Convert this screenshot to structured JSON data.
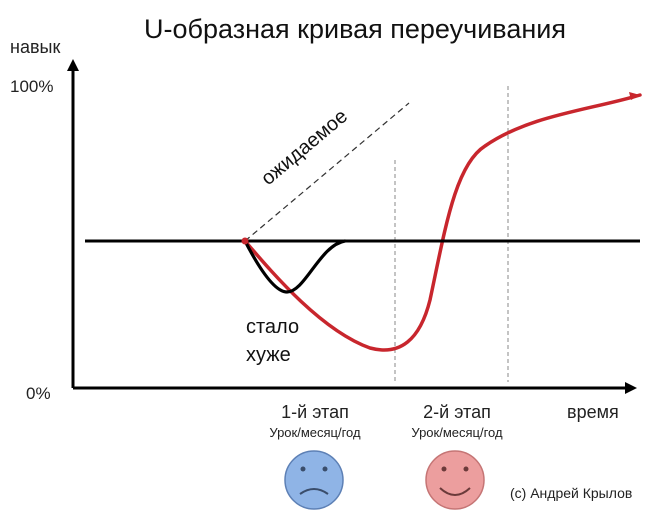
{
  "title": "U-образная кривая переучивания",
  "axes": {
    "y_label": "навык",
    "x_label": "время",
    "y_top": "100%",
    "y_bottom": "0%"
  },
  "annotations": {
    "expected": "ожидаемое",
    "worse_line1": "стало",
    "worse_line2": "хуже"
  },
  "stages": [
    {
      "label": "1-й этап",
      "sub": "Урок/месяц/год",
      "face": "sad",
      "face_color": "#8fb4e6"
    },
    {
      "label": "2-й этап",
      "sub": "Урок/месяц/год",
      "face": "happy",
      "face_color": "#ec9e9e"
    }
  ],
  "credit": "(c) Андрей Крылов",
  "colors": {
    "baseline": "#000000",
    "learning_curve": "#c8262d",
    "expected_line": "#333333",
    "guide_line": "#888888"
  }
}
